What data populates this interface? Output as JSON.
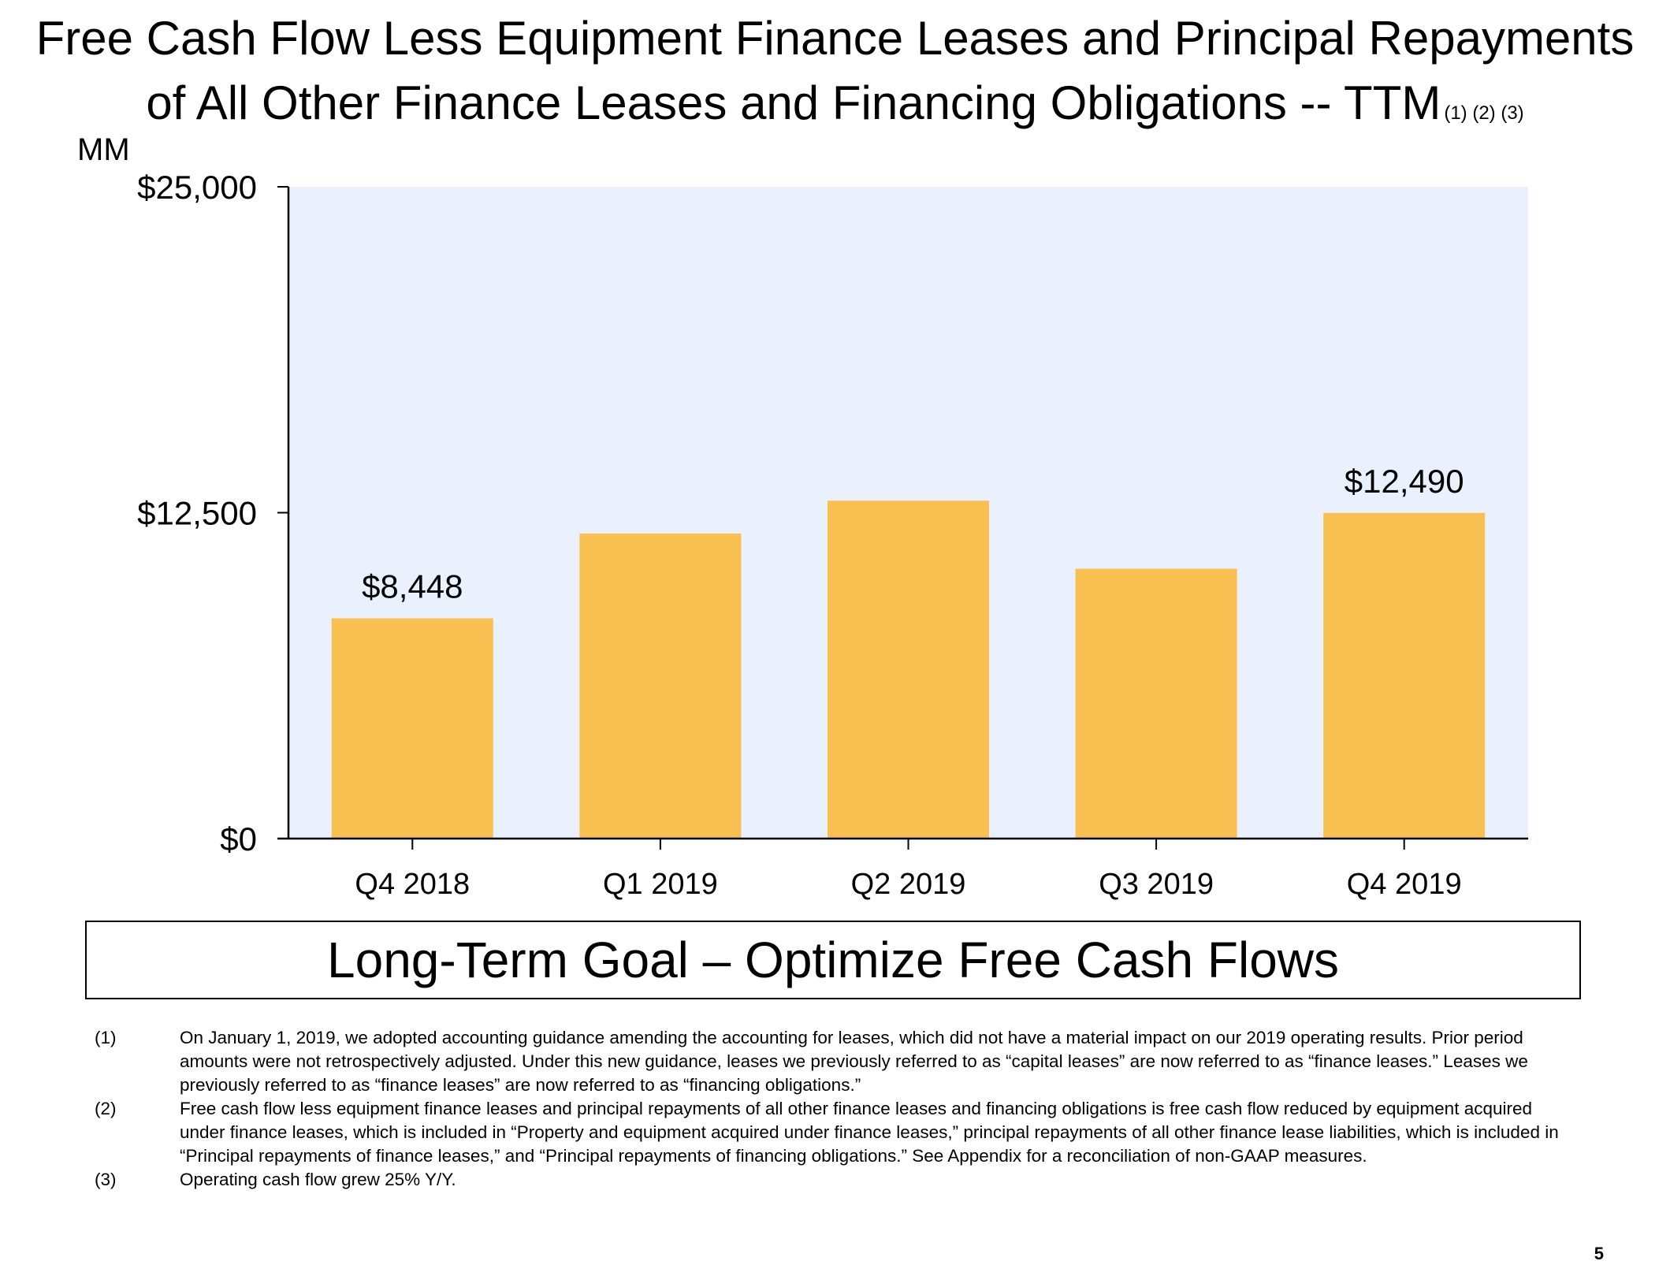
{
  "slide": {
    "title_line1": "Free Cash Flow Less Equipment Finance Leases and Principal Repayments",
    "title_line2": "of All Other Finance Leases and Financing Obligations -- TTM",
    "title_footnote_refs": "(1) (2) (3)",
    "unit_label": "MM",
    "goal_text": "Long-Term Goal – Optimize Free Cash Flows",
    "page_number": "5"
  },
  "footnotes": [
    {
      "num": "(1)",
      "text": "On January 1, 2019, we adopted accounting guidance amending the accounting for leases, which did not have a material impact on our 2019 operating results. Prior period amounts were not retrospectively adjusted. Under this new guidance, leases we previously referred to as “capital leases” are now referred to as “finance leases.” Leases we previously referred to as “finance leases” are now referred to as “financing obligations.”"
    },
    {
      "num": "(2)",
      "text": "Free cash flow less equipment finance leases and principal repayments of all other finance leases and financing obligations is free cash flow reduced by equipment acquired under finance leases, which is included in “Property and equipment acquired under finance leases,” principal repayments of all other finance lease liabilities, which is included in “Principal repayments of finance leases,” and “Principal repayments of financing obligations.” See Appendix for a reconciliation of non-GAAP measures."
    },
    {
      "num": "(3)",
      "text": "Operating cash flow grew 25% Y/Y."
    }
  ],
  "chart_data": {
    "type": "bar",
    "title": "Free Cash Flow Less Equipment Finance Leases and Principal Repayments of All Other Finance Leases and Financing Obligations -- TTM",
    "ylabel": "MM",
    "xlabel": "",
    "categories": [
      "Q4 2018",
      "Q1 2019",
      "Q2 2019",
      "Q3 2019",
      "Q4 2019"
    ],
    "values": [
      8448,
      11700,
      12960,
      10350,
      12490
    ],
    "data_labels": [
      "$8,448",
      "",
      "",
      "",
      "$12,490"
    ],
    "ylim": [
      0,
      25000
    ],
    "yticks": [
      0,
      12500,
      25000
    ],
    "ytick_labels": [
      "$0",
      "$12,500",
      "$25,000"
    ],
    "grid": false,
    "colors": {
      "bar": "#F8BF51",
      "plot_background": "#EAF1FD",
      "axis": "#000000"
    }
  }
}
